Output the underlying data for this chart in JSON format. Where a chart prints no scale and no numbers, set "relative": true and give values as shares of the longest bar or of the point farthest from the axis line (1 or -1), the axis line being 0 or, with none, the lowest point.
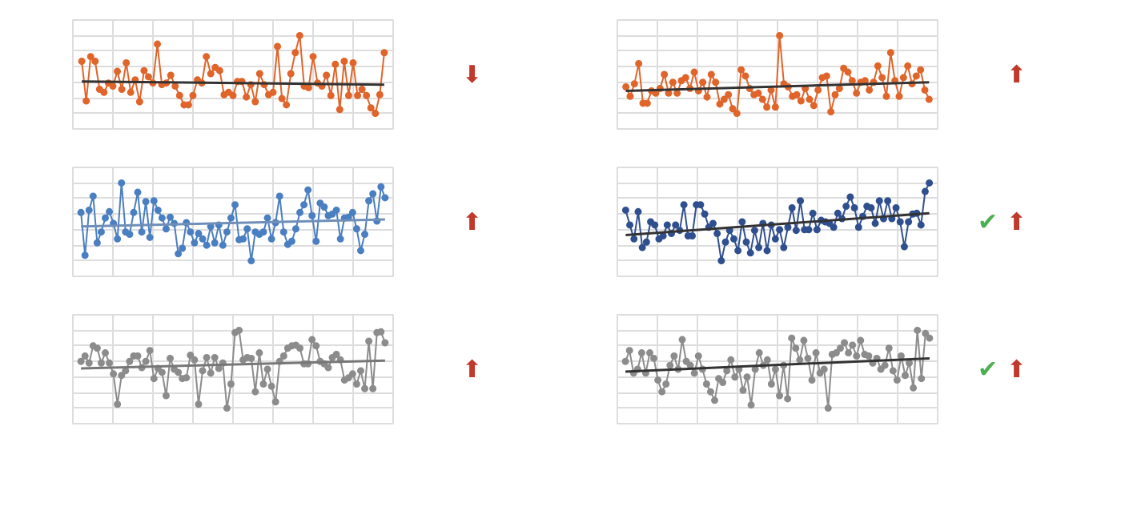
{
  "chart_data": [
    {
      "type": "line",
      "relative": true,
      "grid": true,
      "tick_labels": false,
      "marker": "circle",
      "annotations": [
        "⬇"
      ],
      "categories": [
        null,
        null,
        null,
        null,
        null,
        null,
        null,
        null,
        null,
        null,
        null,
        null,
        null,
        null,
        null,
        null,
        null,
        null,
        null,
        null,
        null,
        null,
        null,
        null,
        null,
        null,
        null,
        null,
        null,
        null,
        null,
        null,
        null,
        null,
        null,
        null,
        null,
        null,
        null,
        null,
        null,
        null,
        null,
        null,
        null,
        null,
        null,
        null,
        null,
        null,
        null,
        null,
        null,
        null,
        null,
        null,
        null,
        null,
        null,
        null,
        null,
        null,
        null,
        null,
        null,
        null,
        null,
        null,
        null
      ],
      "series": [
        {
          "color": "#e0652a",
          "values": [
            0.67,
            0.16,
            0.73,
            0.67,
            0.31,
            0.27,
            0.39,
            0.35,
            0.54,
            0.31,
            0.65,
            0.27,
            0.43,
            0.15,
            0.55,
            0.47,
            0.39,
            0.89,
            0.37,
            0.39,
            0.49,
            0.35,
            0.23,
            0.11,
            0.11,
            0.23,
            0.43,
            0.39,
            0.73,
            0.51,
            0.59,
            0.55,
            0.24,
            0.27,
            0.23,
            0.41,
            0.41,
            0.21,
            0.37,
            0.15,
            0.51,
            0.37,
            0.24,
            0.27,
            0.86,
            0.19,
            0.11,
            0.51,
            0.78,
            1,
            0.35,
            0.33,
            0.73,
            0.39,
            0.35,
            0.49,
            0.23,
            0.63,
            0.05,
            0.67,
            0.23,
            0.65,
            0.23,
            0.31,
            0.23,
            0.07,
            0,
            0.24,
            0.78
          ]
        },
        {
          "type": "line",
          "marker": "none",
          "color": "#333333",
          "values": [
            0.41,
            null,
            null,
            null,
            null,
            null,
            null,
            null,
            null,
            null,
            null,
            null,
            null,
            null,
            null,
            null,
            null,
            null,
            null,
            null,
            null,
            null,
            null,
            null,
            null,
            null,
            null,
            null,
            null,
            null,
            null,
            null,
            null,
            null,
            null,
            null,
            null,
            null,
            null,
            null,
            null,
            null,
            null,
            null,
            null,
            null,
            null,
            null,
            null,
            null,
            null,
            null,
            null,
            null,
            null,
            null,
            null,
            null,
            null,
            null,
            null,
            null,
            null,
            null,
            null,
            null,
            null,
            null,
            0.37
          ]
        }
      ]
    },
    {
      "type": "line",
      "relative": true,
      "grid": true,
      "tick_labels": false,
      "marker": "circle",
      "annotations": [
        "⬆"
      ],
      "categories": [
        null,
        null,
        null,
        null,
        null,
        null,
        null,
        null,
        null,
        null,
        null,
        null,
        null,
        null,
        null,
        null,
        null,
        null,
        null,
        null,
        null,
        null,
        null,
        null,
        null,
        null,
        null,
        null,
        null,
        null,
        null,
        null,
        null,
        null,
        null,
        null,
        null,
        null,
        null,
        null,
        null,
        null,
        null,
        null,
        null,
        null,
        null,
        null,
        null,
        null,
        null,
        null,
        null,
        null,
        null,
        null,
        null,
        null,
        null,
        null,
        null,
        null,
        null,
        null,
        null,
        null,
        null,
        null,
        null,
        null,
        null,
        null
      ],
      "series": [
        {
          "color": "#e0652a",
          "values": [
            0.34,
            0.22,
            0.38,
            0.64,
            0.13,
            0.13,
            0.29,
            0.26,
            0.32,
            0.5,
            0.26,
            0.4,
            0.26,
            0.42,
            0.46,
            0.32,
            0.53,
            0.29,
            0.4,
            0.21,
            0.5,
            0.4,
            0.12,
            0.18,
            0.24,
            0.06,
            0,
            0.56,
            0.48,
            0.32,
            0.24,
            0.26,
            0.18,
            0.08,
            0.3,
            0.08,
            1,
            0.38,
            0.34,
            0.22,
            0.24,
            0.16,
            0.32,
            0.18,
            0.1,
            0.3,
            0.46,
            0.48,
            0.02,
            0.24,
            0.32,
            0.58,
            0.53,
            0.42,
            0.26,
            0.4,
            0.42,
            0.3,
            0.4,
            0.61,
            0.46,
            0.22,
            0.78,
            0.42,
            0.22,
            0.46,
            0.61,
            0.38,
            0.48,
            0.56,
            0.3,
            0.18
          ]
        },
        {
          "type": "line",
          "marker": "none",
          "color": "#333333",
          "values": [
            0.29,
            null,
            null,
            null,
            null,
            null,
            null,
            null,
            null,
            null,
            null,
            null,
            null,
            null,
            null,
            null,
            null,
            null,
            null,
            null,
            null,
            null,
            null,
            null,
            null,
            null,
            null,
            null,
            null,
            null,
            null,
            null,
            null,
            null,
            null,
            null,
            null,
            null,
            null,
            null,
            null,
            null,
            null,
            null,
            null,
            null,
            null,
            null,
            null,
            null,
            null,
            null,
            null,
            null,
            null,
            null,
            null,
            null,
            null,
            null,
            null,
            null,
            null,
            null,
            null,
            null,
            null,
            null,
            null,
            null,
            null,
            0.4
          ]
        }
      ]
    },
    {
      "type": "line",
      "relative": true,
      "grid": true,
      "tick_labels": false,
      "marker": "circle",
      "annotations": [
        "⬆"
      ],
      "categories": [
        null,
        null,
        null,
        null,
        null,
        null,
        null,
        null,
        null,
        null,
        null,
        null,
        null,
        null,
        null,
        null,
        null,
        null,
        null,
        null,
        null,
        null,
        null,
        null,
        null,
        null,
        null,
        null,
        null,
        null,
        null,
        null,
        null,
        null,
        null,
        null,
        null,
        null,
        null,
        null,
        null,
        null,
        null,
        null,
        null,
        null,
        null,
        null,
        null,
        null,
        null,
        null,
        null,
        null,
        null,
        null,
        null,
        null,
        null,
        null,
        null,
        null,
        null,
        null,
        null,
        null,
        null,
        null,
        null,
        null,
        null,
        null,
        null,
        null,
        null,
        null
      ],
      "series": [
        {
          "color": "#4a7fc1",
          "values": [
            0.62,
            0.07,
            0.65,
            0.83,
            0.23,
            0.37,
            0.55,
            0.63,
            0.48,
            0.28,
            1,
            0.37,
            0.34,
            0.62,
            0.88,
            0.37,
            0.76,
            0.3,
            0.77,
            0.65,
            0.55,
            0.41,
            0.56,
            0.48,
            0.09,
            0.16,
            0.49,
            0.37,
            0.23,
            0.35,
            0.28,
            0.2,
            0.44,
            0.23,
            0.46,
            0.2,
            0.37,
            0.55,
            0.72,
            0.27,
            0.28,
            0.41,
            0,
            0.37,
            0.34,
            0.37,
            0.55,
            0.28,
            0.49,
            0.83,
            0.37,
            0.21,
            0.25,
            0.41,
            0.62,
            0.72,
            0.91,
            0.58,
            0.25,
            0.74,
            0.69,
            0.58,
            0.6,
            0.65,
            0.28,
            0.55,
            0.56,
            0.62,
            0.41,
            0.13,
            0.34,
            0.77,
            0.86,
            0.51,
            0.95,
            0.81
          ]
        },
        {
          "type": "line",
          "marker": "none",
          "color": "#6f8fb8",
          "values": [
            0.44,
            null,
            null,
            null,
            null,
            null,
            null,
            null,
            null,
            null,
            null,
            null,
            null,
            null,
            null,
            null,
            null,
            null,
            null,
            null,
            null,
            null,
            null,
            null,
            null,
            null,
            null,
            null,
            null,
            null,
            null,
            null,
            null,
            null,
            null,
            null,
            null,
            null,
            null,
            null,
            null,
            null,
            null,
            null,
            null,
            null,
            null,
            null,
            null,
            null,
            null,
            null,
            null,
            null,
            null,
            null,
            null,
            null,
            null,
            null,
            null,
            null,
            null,
            null,
            null,
            null,
            null,
            null,
            null,
            null,
            null,
            null,
            null,
            null,
            null,
            0.53
          ]
        }
      ]
    },
    {
      "type": "line",
      "relative": true,
      "grid": true,
      "tick_labels": false,
      "marker": "circle",
      "annotations": [
        "✔",
        "⬆"
      ],
      "categories": [
        null,
        null,
        null,
        null,
        null,
        null,
        null,
        null,
        null,
        null,
        null,
        null,
        null,
        null,
        null,
        null,
        null,
        null,
        null,
        null,
        null,
        null,
        null,
        null,
        null,
        null,
        null,
        null,
        null,
        null,
        null,
        null,
        null,
        null,
        null,
        null,
        null,
        null,
        null,
        null,
        null,
        null,
        null,
        null,
        null,
        null,
        null,
        null,
        null,
        null,
        null,
        null,
        null,
        null,
        null,
        null,
        null,
        null,
        null,
        null,
        null,
        null,
        null,
        null,
        null,
        null,
        null,
        null,
        null,
        null,
        null,
        null,
        null,
        null
      ],
      "series": [
        {
          "color": "#2f4f8f",
          "values": [
            0.65,
            0.46,
            0.28,
            0.63,
            0.17,
            0.24,
            0.5,
            0.46,
            0.28,
            0.32,
            0.46,
            0.35,
            0.46,
            0.39,
            0.72,
            0.32,
            0.32,
            0.72,
            0.72,
            0.6,
            0.43,
            0.48,
            0.35,
            0,
            0.24,
            0.39,
            0.28,
            0.13,
            0.5,
            0.24,
            0.1,
            0.39,
            0.17,
            0.48,
            0.13,
            0.46,
            0.28,
            0.4,
            0.17,
            0.43,
            0.68,
            0.39,
            0.77,
            0.4,
            0.4,
            0.61,
            0.4,
            0.52,
            0.5,
            0.48,
            0.43,
            0.61,
            0.54,
            0.7,
            0.82,
            0.68,
            0.43,
            0.57,
            0.7,
            0.68,
            0.48,
            0.77,
            0.54,
            0.77,
            0.54,
            0.68,
            0.5,
            0.18,
            0.5,
            0.6,
            0.61,
            0.46,
            0.89,
            1
          ]
        },
        {
          "type": "line",
          "marker": "none",
          "color": "#333333",
          "values": [
            0.33,
            null,
            null,
            null,
            null,
            null,
            null,
            null,
            null,
            null,
            null,
            null,
            null,
            null,
            null,
            null,
            null,
            null,
            null,
            null,
            null,
            null,
            null,
            null,
            null,
            null,
            null,
            null,
            null,
            null,
            null,
            null,
            null,
            null,
            null,
            null,
            null,
            null,
            null,
            null,
            null,
            null,
            null,
            null,
            null,
            null,
            null,
            null,
            null,
            null,
            null,
            null,
            null,
            null,
            null,
            null,
            null,
            null,
            null,
            null,
            null,
            null,
            null,
            null,
            null,
            null,
            null,
            null,
            null,
            null,
            null,
            null,
            null,
            0.61
          ]
        }
      ]
    },
    {
      "type": "line",
      "relative": true,
      "grid": true,
      "tick_labels": false,
      "marker": "circle",
      "annotations": [
        "⬆"
      ],
      "categories": [
        null,
        null,
        null,
        null,
        null,
        null,
        null,
        null,
        null,
        null,
        null,
        null,
        null,
        null,
        null,
        null,
        null,
        null,
        null,
        null,
        null,
        null,
        null,
        null,
        null,
        null,
        null,
        null,
        null,
        null,
        null,
        null,
        null,
        null,
        null,
        null,
        null,
        null,
        null,
        null,
        null,
        null,
        null,
        null,
        null,
        null,
        null,
        null,
        null,
        null,
        null,
        null,
        null,
        null,
        null,
        null,
        null,
        null,
        null,
        null,
        null,
        null,
        null,
        null,
        null,
        null,
        null,
        null,
        null,
        null,
        null,
        null,
        null,
        null,
        null,
        null
      ],
      "series": [
        {
          "color": "#8c8c8c",
          "values": [
            0.6,
            0.67,
            0.58,
            0.8,
            0.77,
            0.58,
            0.71,
            0.58,
            0.44,
            0.05,
            0.42,
            0.48,
            0.6,
            0.67,
            0.67,
            0.52,
            0.6,
            0.74,
            0.38,
            0.51,
            0.46,
            0.16,
            0.64,
            0.5,
            0.46,
            0.38,
            0.39,
            0.68,
            0.62,
            0.05,
            0.48,
            0.65,
            0.45,
            0.65,
            0.51,
            0.58,
            0,
            0.31,
            0.97,
            1,
            0.62,
            0.65,
            0.64,
            0.21,
            0.71,
            0.31,
            0.5,
            0.28,
            0.08,
            0.6,
            0.67,
            0.77,
            0.8,
            0.81,
            0.77,
            0.57,
            0.57,
            0.88,
            0.8,
            0.6,
            0.57,
            0.52,
            0.65,
            0.69,
            0.62,
            0.36,
            0.39,
            0.44,
            0.31,
            0.48,
            0.25,
            0.86,
            0.25,
            0.97,
            0.98,
            0.84
          ]
        },
        {
          "type": "line",
          "marker": "none",
          "color": "#777777",
          "values": [
            0.51,
            null,
            null,
            null,
            null,
            null,
            null,
            null,
            null,
            null,
            null,
            null,
            null,
            null,
            null,
            null,
            null,
            null,
            null,
            null,
            null,
            null,
            null,
            null,
            null,
            null,
            null,
            null,
            null,
            null,
            null,
            null,
            null,
            null,
            null,
            null,
            null,
            null,
            null,
            null,
            null,
            null,
            null,
            null,
            null,
            null,
            null,
            null,
            null,
            null,
            null,
            null,
            null,
            null,
            null,
            null,
            null,
            null,
            null,
            null,
            null,
            null,
            null,
            null,
            null,
            null,
            null,
            null,
            null,
            null,
            null,
            null,
            null,
            null,
            null,
            0.61
          ]
        }
      ]
    },
    {
      "type": "line",
      "relative": true,
      "grid": true,
      "tick_labels": false,
      "marker": "circle",
      "annotations": [
        "✔",
        "⬆"
      ],
      "categories": [
        null,
        null,
        null,
        null,
        null,
        null,
        null,
        null,
        null,
        null,
        null,
        null,
        null,
        null,
        null,
        null,
        null,
        null,
        null,
        null,
        null,
        null,
        null,
        null,
        null,
        null,
        null,
        null,
        null,
        null,
        null,
        null,
        null,
        null,
        null,
        null,
        null,
        null,
        null,
        null,
        null,
        null,
        null,
        null,
        null,
        null,
        null,
        null,
        null,
        null,
        null,
        null,
        null,
        null,
        null,
        null,
        null,
        null,
        null,
        null,
        null,
        null,
        null,
        null,
        null,
        null,
        null,
        null,
        null,
        null,
        null,
        null,
        null,
        null,
        null,
        null
      ],
      "series": [
        {
          "color": "#8c8c8c",
          "values": [
            0.6,
            0.74,
            0.45,
            0.5,
            0.71,
            0.45,
            0.71,
            0.64,
            0.36,
            0.21,
            0.31,
            0.55,
            0.67,
            0.5,
            0.88,
            0.6,
            0.55,
            0.45,
            0.67,
            0.5,
            0.31,
            0.21,
            0.1,
            0.38,
            0.33,
            0.48,
            0.62,
            0.4,
            0.5,
            0.23,
            0.4,
            0.04,
            0.5,
            0.71,
            0.55,
            0.62,
            0.31,
            0.5,
            0.16,
            0.55,
            0.12,
            0.9,
            0.77,
            0.62,
            0.87,
            0.64,
            0.36,
            0.71,
            0.45,
            0.5,
            0,
            0.69,
            0.71,
            0.77,
            0.84,
            0.71,
            0.81,
            0.67,
            0.87,
            0.69,
            0.67,
            0.58,
            0.64,
            0.5,
            0.55,
            0.77,
            0.48,
            0.36,
            0.67,
            0.42,
            0.58,
            0.26,
            1,
            0.38,
            0.96,
            0.9
          ]
        },
        {
          "type": "line",
          "marker": "none",
          "color": "#333333",
          "values": [
            0.47,
            null,
            null,
            null,
            null,
            null,
            null,
            null,
            null,
            null,
            null,
            null,
            null,
            null,
            null,
            null,
            null,
            null,
            null,
            null,
            null,
            null,
            null,
            null,
            null,
            null,
            null,
            null,
            null,
            null,
            null,
            null,
            null,
            null,
            null,
            null,
            null,
            null,
            null,
            null,
            null,
            null,
            null,
            null,
            null,
            null,
            null,
            null,
            null,
            null,
            null,
            null,
            null,
            null,
            null,
            null,
            null,
            null,
            null,
            null,
            null,
            null,
            null,
            null,
            null,
            null,
            null,
            null,
            null,
            null,
            null,
            null,
            null,
            null,
            null,
            0.64
          ]
        }
      ]
    }
  ]
}
